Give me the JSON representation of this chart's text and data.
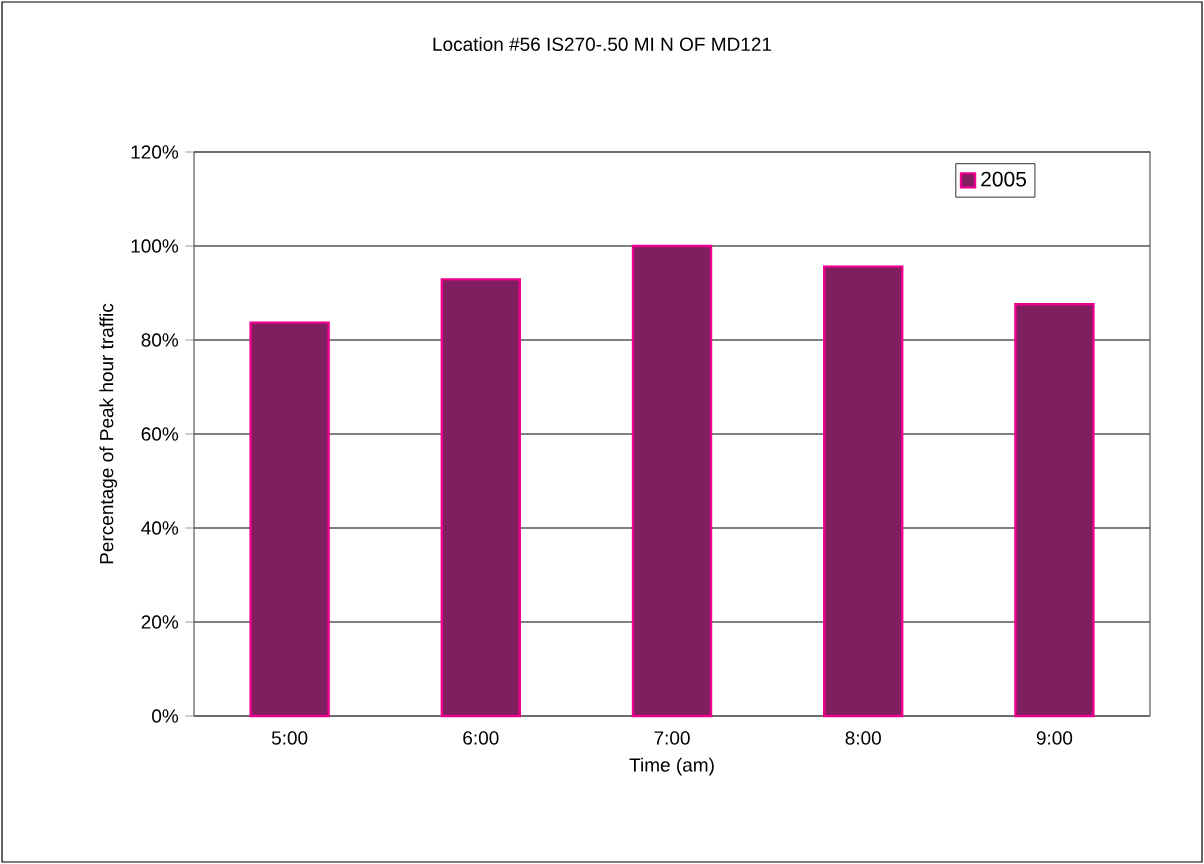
{
  "chart_data": {
    "type": "bar",
    "title": "Location #56 IS270-.50 MI N OF MD121",
    "xlabel": "Time (am)",
    "ylabel": "Percentage of Peak hour traffic",
    "categories": [
      "5:00",
      "6:00",
      "7:00",
      "8:00",
      "9:00"
    ],
    "series": [
      {
        "name": "2005",
        "color": "#7f1f5f",
        "values": [
          83.7,
          92.9,
          100,
          95.6,
          87.6
        ]
      }
    ],
    "ylim": [
      0,
      120
    ],
    "yticks": [
      {
        "value": 0,
        "label": "0%"
      },
      {
        "value": 20,
        "label": "20%"
      },
      {
        "value": 40,
        "label": "40%"
      },
      {
        "value": 60,
        "label": "60%"
      },
      {
        "value": 80,
        "label": "80%"
      },
      {
        "value": 100,
        "label": "100%"
      },
      {
        "value": 120,
        "label": "120%"
      }
    ],
    "grid": "y",
    "legend": "top right"
  }
}
